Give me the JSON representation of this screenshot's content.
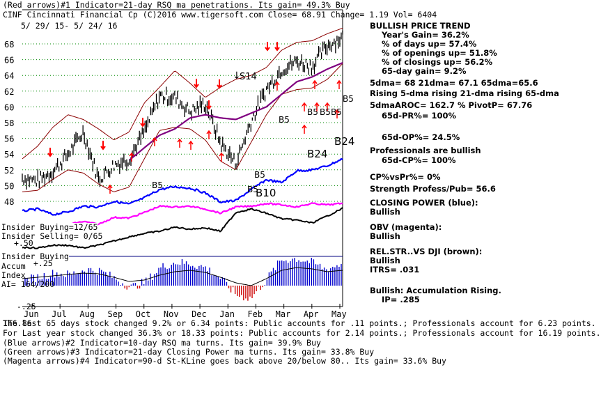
{
  "header": {
    "line1": "(Red arrows)#1 Indicator=21-day RSQ ma penetrations. Its gain= 49.3% Buy",
    "line2": "CINF  Cincinnati Financial Cp  (C)2016 www.tigersoft.com    Close=  68.91  Change= 1.19 Vol= 6404",
    "daterange": "5/ 29/ 15- 5/ 24/ 16"
  },
  "right_panel": [
    "BULLISH PRICE TREND",
    "Year's Gain= 36.2%",
    "% of days up= 57.4%",
    "% of openings up= 51.8%",
    "% of closings up= 56.2%",
    "65-day gain= 9.2%",
    "5dma= 68 21dma= 67.1 65dma=65.6",
    "Rising 5-dma rising 21-dma rising 65-dma",
    "5dmaAROC= 162.7 %  PivotP= 67.76",
    "65d-PR%= 100%",
    "65d-OP%= 24.5%",
    "Professionals are bullish",
    "65d-CP%= 100%",
    "CP%vsPr%=  0%",
    "Strength Profess/Pub= 56.6",
    "CLOSING POWER (blue):",
    "Bullish",
    "OBV (magenta):",
    "Bullish",
    "REL.STR..VS DJI (brown):",
    "Bullish",
    "ITRS= .031",
    "Bullish: Accumulation Rising.",
    "IP=  .285"
  ],
  "left_labels": {
    "insider_buying_count": "Insider Buying=12/65",
    "insider_selling_count": "Insider Selling= 0/65",
    "plus50": "+.50",
    "insider_buying": "Insider Buying",
    "accum": "Accum",
    "plus25": "+.25",
    "index": "Index",
    "ai": "AI= 164/200",
    "minus25": "-.25"
  },
  "chart_annotations": {
    "s14": "S14",
    "b24_top": "B24",
    "b24_mid": "B24",
    "b5_a": "B5",
    "b5_b": "B5",
    "b5_c": "B5",
    "b5_d": "B5",
    "b5_e": "B5",
    "b5_f": "B5",
    "b5_g": "B5",
    "b5_h": "B5",
    "b10": "B10",
    "arrow_down": "↓"
  },
  "footer": [
    "The last 65 days stock changed  9.2% or  6.34 points:  Public accounts for  .11 points.;  Professionals account for  6.23 points.",
    "For Last year stock changed  36.3% or  18.33 points:  Public accounts for  2.14 points.;  Professionals account for  16.19 points.",
    "(Blue arrows)#2 Indicator=10-day RSQ ma turns. Its gain= 39.9% Buy",
    "(Green arrows)#3 Indicator=21-day Closing Power ma turns. Its gain= 33.8% Buy",
    "(Magenta arrows)#4 Indicator=90-d St-KLine goes back above 20/below 80.. Its gain= 33.6% Buy"
  ],
  "footer_overlap": "1T6.86",
  "colors": {
    "price": "#000000",
    "bands": "#8b0000",
    "ma65": "#800080",
    "closing_power": "#0000ff",
    "obv": "#ff00ff",
    "relstr": "#000000",
    "accum": "#0000cc",
    "accum_neg": "#cc0000",
    "grid": "#008800",
    "arrows": "#ff0000"
  },
  "chart_data": {
    "type": "line",
    "title": "CINF Cincinnati Financial Cp",
    "x_ticks": [
      "Jun",
      "Jul",
      "Aug",
      "Sep",
      "Oct",
      "Nov",
      "Dec",
      "Jan",
      "Feb",
      "Mar",
      "Apr",
      "May"
    ],
    "y_ticks": [
      68,
      66,
      64,
      62,
      60,
      58,
      56,
      54,
      52,
      50,
      48
    ],
    "ylim": [
      47,
      70
    ],
    "series": [
      {
        "name": "Price (close)",
        "values": [
          51,
          50.6,
          51.8,
          54,
          56.8,
          50.8,
          52.6,
          53.4,
          56.8,
          61.4,
          61.2,
          59.4,
          60.4,
          55.4,
          52.8,
          58.2,
          62.2,
          64.8,
          65.8,
          65.2,
          67.8,
          68.9
        ]
      },
      {
        "name": "Upper band",
        "values": [
          53.4,
          55,
          57.4,
          59,
          58.4,
          57.2,
          55.8,
          56.8,
          60.5,
          62.5,
          64.6,
          63,
          61.2,
          62.5,
          63.5,
          64,
          65,
          67.2,
          68.2,
          68.4,
          69.3,
          70
        ]
      },
      {
        "name": "Lower band",
        "values": [
          49.2,
          49.4,
          50.8,
          52,
          51.6,
          50.2,
          49.2,
          49.8,
          53.4,
          57,
          57.4,
          57.2,
          55.8,
          53.1,
          52,
          55.5,
          59,
          61.6,
          62.2,
          62.4,
          63.5,
          65.5
        ]
      },
      {
        "name": "65-dma",
        "values": [
          null,
          null,
          null,
          null,
          null,
          null,
          null,
          53.2,
          54.8,
          56.4,
          57.2,
          58.6,
          59,
          58.6,
          58.4,
          59.2,
          60,
          61.6,
          63.2,
          63.8,
          64.8,
          65.6
        ]
      }
    ]
  }
}
